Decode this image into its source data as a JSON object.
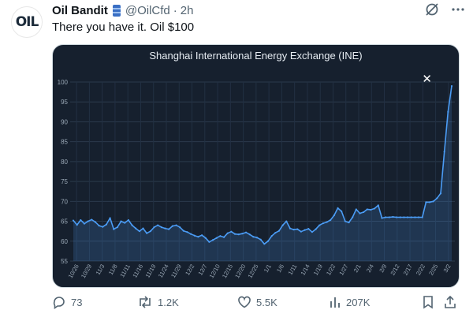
{
  "tweet": {
    "avatar_text": "OIL",
    "author_name": "Oil Bandit",
    "handle": "@OilCfd",
    "separator": "·",
    "time": "2h",
    "text": "There you have it. Oil $100"
  },
  "actions": {
    "replies": "73",
    "reposts": "1.2K",
    "likes": "5.5K",
    "views": "207K"
  },
  "card": {
    "close_label": "✕"
  },
  "chart_data": {
    "type": "line",
    "title": "Shanghai International Energy Exchange (INE)",
    "xlabel": "",
    "ylabel": "",
    "ylim": [
      55,
      100
    ],
    "yticks": [
      55,
      60,
      65,
      70,
      75,
      80,
      85,
      90,
      95,
      100
    ],
    "grid": true,
    "x_tick_labels": [
      "10/26",
      "10/29",
      "11/3",
      "11/8",
      "11/11",
      "11/16",
      "11/19",
      "11/24",
      "11/29",
      "12/2",
      "12/7",
      "12/10",
      "12/15",
      "12/20",
      "12/25",
      "1/1",
      "1/6",
      "1/11",
      "1/14",
      "1/19",
      "1/22",
      "1/27",
      "2/1",
      "2/4",
      "2/9",
      "2/12",
      "2/17",
      "2/22",
      "2/25",
      "3/2"
    ],
    "series": [
      {
        "color": "#4b9cf5",
        "values": [
          65.2,
          64.1,
          65.3,
          64.4,
          65.0,
          65.4,
          64.8,
          63.9,
          63.6,
          64.2,
          65.8,
          63.0,
          63.5,
          65.0,
          64.6,
          65.3,
          64.0,
          63.2,
          62.5,
          63.2,
          62.0,
          62.5,
          63.5,
          64.0,
          63.5,
          63.2,
          63.0,
          63.8,
          64.0,
          63.5,
          62.6,
          62.3,
          61.8,
          61.4,
          61.1,
          61.5,
          60.8,
          59.8,
          60.3,
          60.8,
          61.3,
          61.0,
          62.0,
          62.4,
          61.8,
          61.7,
          61.9,
          62.2,
          61.7,
          61.1,
          60.9,
          60.4,
          59.3,
          60.0,
          61.3,
          62.1,
          62.6,
          64.0,
          65.0,
          63.2,
          62.9,
          63.0,
          62.4,
          62.8,
          63.1,
          62.3,
          63.0,
          64.0,
          64.5,
          64.8,
          65.3,
          66.5,
          68.3,
          67.5,
          65.0,
          64.7,
          66.0,
          68.0,
          67.0,
          67.3,
          68.0,
          67.9,
          68.2,
          69.0,
          65.8,
          66.0,
          66.0,
          66.1,
          66.0,
          66.0,
          66.0,
          66.0,
          66.0,
          66.0,
          66.0,
          66.0,
          69.8,
          69.8,
          70.0,
          70.8,
          72.0,
          82.5,
          92.5,
          99.0
        ]
      }
    ]
  }
}
